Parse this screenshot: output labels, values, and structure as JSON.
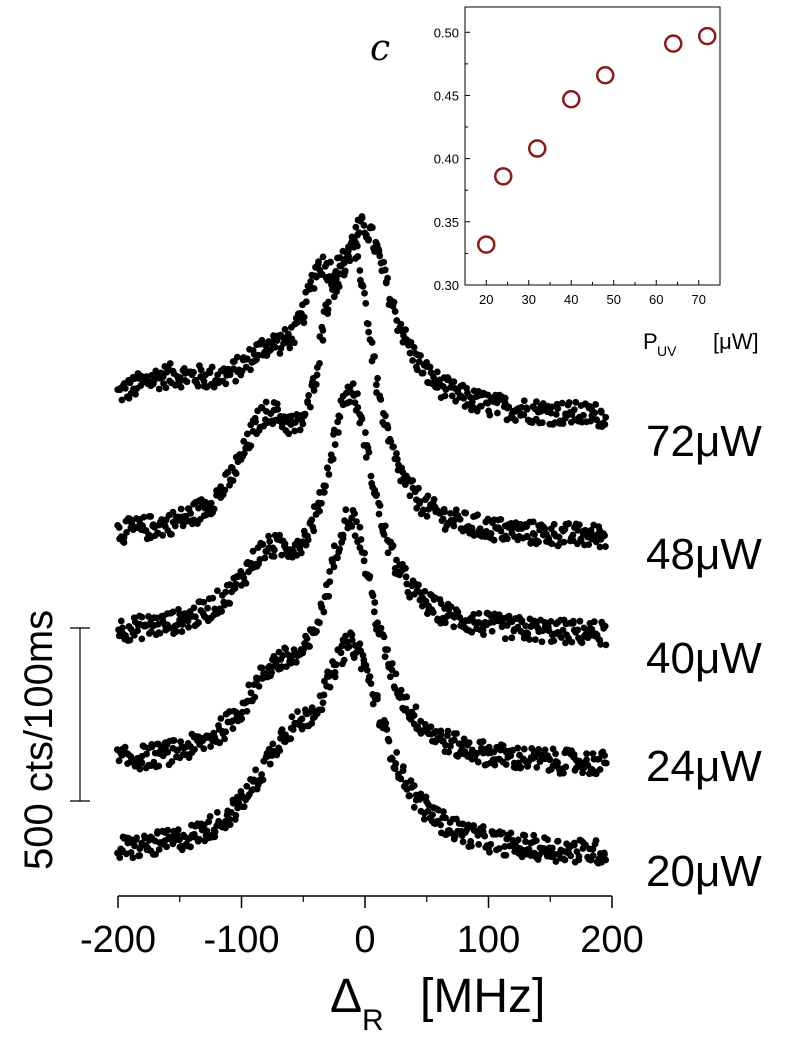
{
  "chart_data": [
    {
      "type": "scatter",
      "panel_label": "c",
      "xlabel_main": "P",
      "xlabel_sub": "UV",
      "xlabel_unit": "[μW]",
      "ylabel": "",
      "xlim": [
        15,
        75
      ],
      "ylim": [
        0.3,
        0.52
      ],
      "x_ticks": [
        "20",
        "30",
        "40",
        "50",
        "60",
        "70"
      ],
      "y_ticks": [
        "0.30",
        "0.35",
        "0.40",
        "0.45",
        "0.50"
      ],
      "marker_color": "#8b1a1a",
      "points": [
        {
          "x": 20,
          "y": 0.332
        },
        {
          "x": 24,
          "y": 0.386
        },
        {
          "x": 32,
          "y": 0.408
        },
        {
          "x": 40,
          "y": 0.447
        },
        {
          "x": 48,
          "y": 0.466
        },
        {
          "x": 64,
          "y": 0.491
        },
        {
          "x": 72,
          "y": 0.497
        }
      ]
    },
    {
      "type": "scatter",
      "xlabel_main": "Δ",
      "xlabel_sub": "R",
      "xlabel_unit": "[MHz]",
      "scale_bar_label": "500 cts/100ms",
      "scale_bar_counts": 500,
      "xlim": [
        -200,
        200
      ],
      "x_ticks": [
        "-200",
        "-100",
        "0",
        "100",
        "200"
      ],
      "marker_color": "#000000",
      "series": [
        {
          "name": "72μW",
          "baseline": 0,
          "peaks": [
            {
              "center": 0,
              "height": 510,
              "width": 28
            },
            {
              "center": -38,
              "height": 220,
              "width": 14
            },
            {
              "center": -80,
              "height": 110,
              "width": 25
            },
            {
              "center": -160,
              "height": 100,
              "width": 50
            }
          ]
        },
        {
          "name": "48μW",
          "baseline": 0,
          "peaks": [
            {
              "center": -8,
              "height": 720,
              "width": 20
            },
            {
              "center": -30,
              "height": 300,
              "width": 12
            },
            {
              "center": -80,
              "height": 300,
              "width": 28
            }
          ]
        },
        {
          "name": "40μW",
          "baseline": 0,
          "peaks": [
            {
              "center": -12,
              "height": 680,
              "width": 24
            },
            {
              "center": -80,
              "height": 180,
              "width": 30
            }
          ]
        },
        {
          "name": "24μW",
          "baseline": 0,
          "peaks": [
            {
              "center": -12,
              "height": 690,
              "width": 26
            },
            {
              "center": -75,
              "height": 200,
              "width": 30
            }
          ]
        },
        {
          "name": "20μW",
          "baseline": 0,
          "peaks": [
            {
              "center": -10,
              "height": 560,
              "width": 32
            },
            {
              "center": -65,
              "height": 220,
              "width": 32
            }
          ]
        }
      ]
    }
  ]
}
